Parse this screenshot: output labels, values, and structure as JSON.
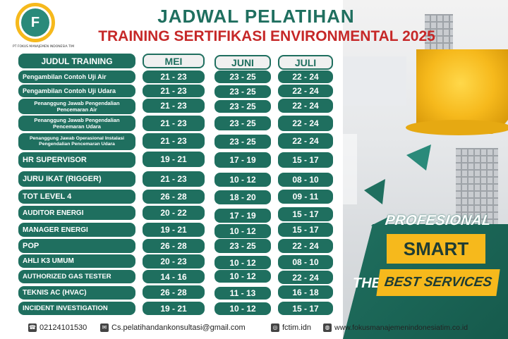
{
  "logo": {
    "caption": "PT FOKUS MANAJEMEN INDONESIA TIM",
    "mark": "F"
  },
  "title": "JADWAL PELATIHAN",
  "subtitle": "TRAINING SERTIFIKASI ENVIRONMENTAL 2025",
  "table": {
    "headers": {
      "training": "JUDUL TRAINING",
      "mei": "MEI",
      "juni": "JUNI",
      "juli": "JULI"
    },
    "rows": [
      {
        "name": "Pengambilan Contoh Uji Air",
        "mei": "21 - 23",
        "juni": "23 - 25",
        "juli": "22 - 24"
      },
      {
        "name": "Pengambilan Contoh Uji Udara",
        "mei": "21 - 23",
        "juni": "23 - 25",
        "juli": "22 - 24"
      },
      {
        "name": "Penanggung Jawab Pengendalian Pencemaran Air",
        "mei": "21 - 23",
        "juni": "23 - 25",
        "juli": "22 - 24"
      },
      {
        "name": "Penanggung Jawab Pengendalian Pencemaran Udara",
        "mei": "21 - 23",
        "juni": "23 - 25",
        "juli": "22 - 24"
      },
      {
        "name": "Penanggung Jawab Operasional Instalasi Pengendalian Pencemaran Udara",
        "mei": "21 - 23",
        "juni": "23 - 25",
        "juli": "22 - 24"
      },
      {
        "name": "HR SUPERVISOR",
        "mei": "19 - 21",
        "juni": "17 - 19",
        "juli": "15 - 17"
      },
      {
        "name": "JURU IKAT (RIGGER)",
        "mei": "21 - 23",
        "juni": "10 - 12",
        "juli": "08 - 10"
      },
      {
        "name": "TOT LEVEL 4",
        "mei": "26 - 28",
        "juni": "18 - 20",
        "juli": "09 - 11"
      },
      {
        "name": "AUDITOR ENERGI",
        "mei": "20 - 22",
        "juni": "17 - 19",
        "juli": "15 - 17"
      },
      {
        "name": "MANAGER ENERGI",
        "mei": "19 - 21",
        "juni": "10 - 12",
        "juli": "15 - 17"
      },
      {
        "name": "POP",
        "mei": "26 - 28",
        "juni": "23 - 25",
        "juli": "22 - 24"
      },
      {
        "name": "AHLI K3 UMUM",
        "mei": "20 - 23",
        "juni": "10 - 12",
        "juli": "08 - 10"
      },
      {
        "name": "AUTHORIZED GAS TESTER",
        "mei": "14 - 16",
        "juni": "10 - 12",
        "juli": "22 - 24"
      },
      {
        "name": "TEKNIS AC (HVAC)",
        "mei": "26 - 28",
        "juni": "11 - 13",
        "juli": "16 - 18"
      },
      {
        "name": "INCIDENT INVESTIGATION",
        "mei": "19 - 21",
        "juni": "10 - 12",
        "juli": "15 - 17"
      }
    ]
  },
  "slogan": {
    "line1": "PROFESIONAL",
    "line2": "SMART",
    "line3": "THEN",
    "line4": "BEST SERVICES"
  },
  "footer": {
    "phone": "02124101530",
    "email": "Cs.pelatihandankonsultasi@gmail.com",
    "instagram": "fctim.idn",
    "website": "www.fokusmanajemenindonesiatim.co.id"
  },
  "colors": {
    "primary": "#1f6f5f",
    "accent": "#f6b91c",
    "title_red": "#c62828"
  }
}
